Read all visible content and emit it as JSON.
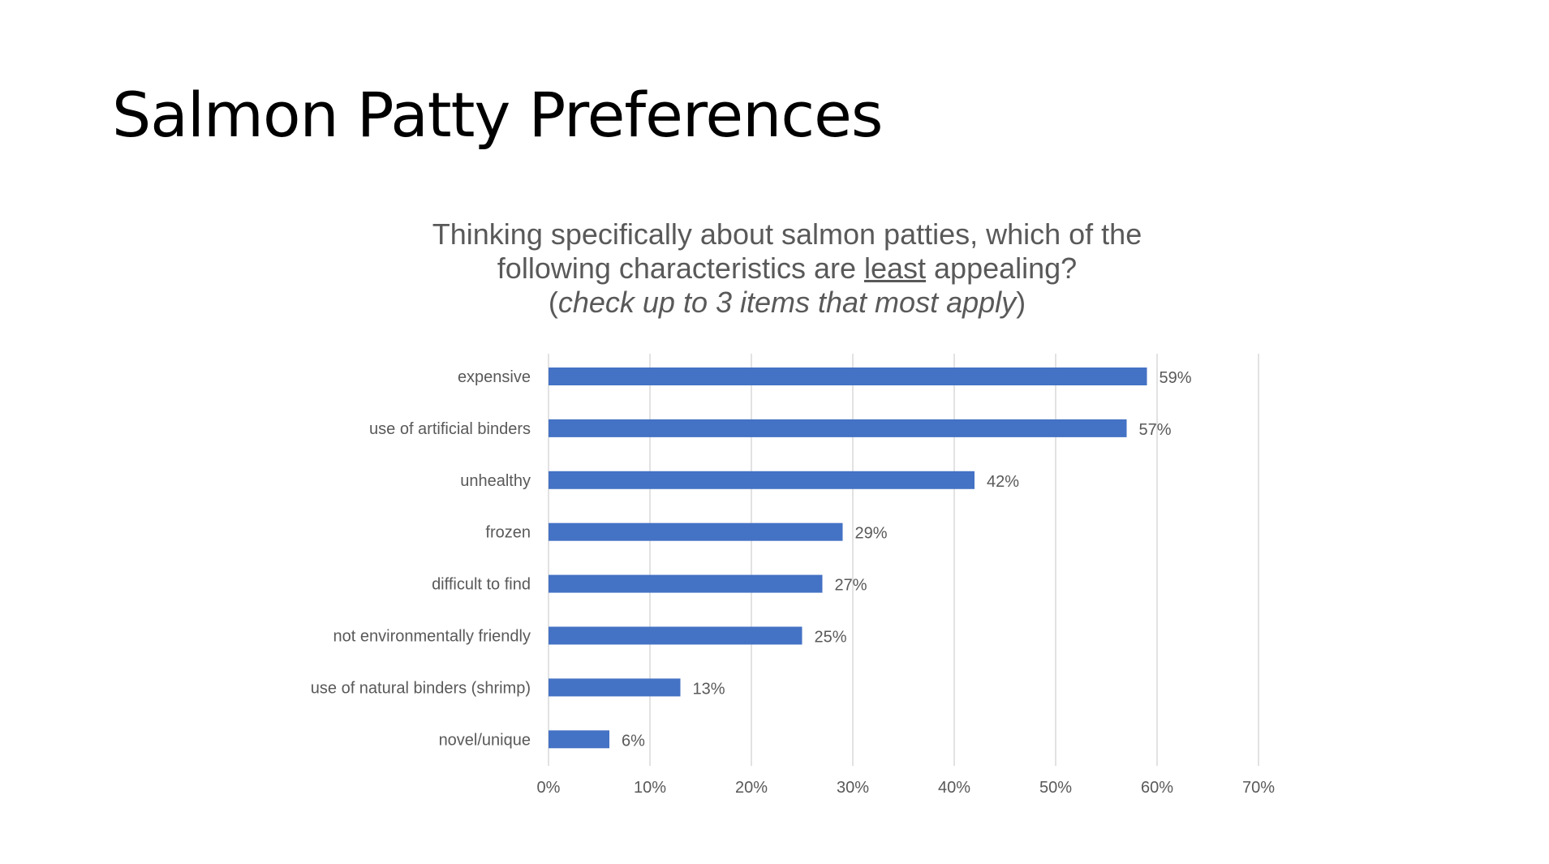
{
  "slide": {
    "title": "Salmon Patty Preferences"
  },
  "chart_data": {
    "type": "bar",
    "orientation": "horizontal",
    "title_parts": {
      "line1": "Thinking specifically about salmon patties, which of the",
      "line2_before": "following characteristics are ",
      "line2_emph": "least",
      "line2_after": " appealing?",
      "line3_open": "(",
      "line3_note": "check up to 3 items that most apply",
      "line3_close": ")"
    },
    "categories": [
      "expensive",
      "use of artificial binders",
      "unhealthy",
      "frozen",
      "difficult to find",
      "not environmentally friendly",
      "use of natural binders (shrimp)",
      "novel/unique"
    ],
    "values": [
      59,
      57,
      42,
      29,
      27,
      25,
      13,
      6
    ],
    "value_labels": [
      "59%",
      "57%",
      "42%",
      "29%",
      "27%",
      "25%",
      "13%",
      "6%"
    ],
    "xlim": [
      0,
      70
    ],
    "x_ticks": [
      0,
      10,
      20,
      30,
      40,
      50,
      60,
      70
    ],
    "x_tick_labels": [
      "0%",
      "10%",
      "20%",
      "30%",
      "40%",
      "50%",
      "60%",
      "70%"
    ],
    "grid": "vertical",
    "legend": "none",
    "bar_color": "#4472C4",
    "grid_color": "#D9D9D9",
    "label_color": "#595959"
  }
}
